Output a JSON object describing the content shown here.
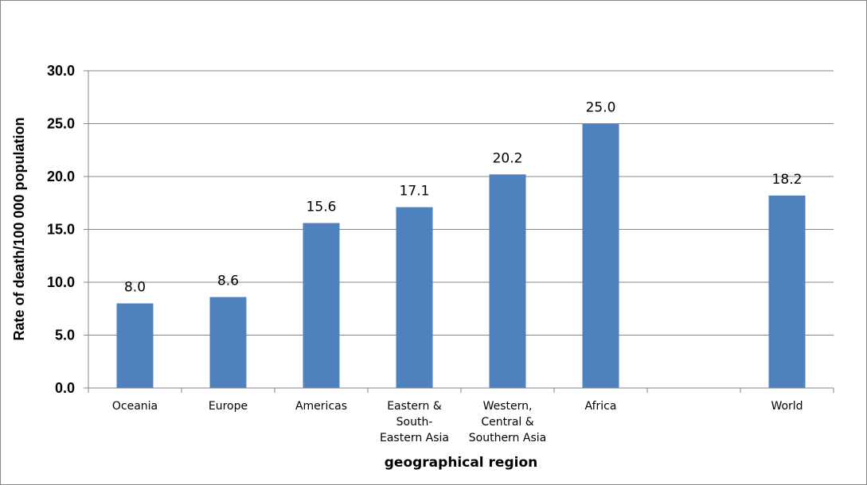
{
  "chart_data": {
    "type": "bar",
    "title": "",
    "categories": [
      "Oceania",
      "Europe",
      "Americas",
      "Eastern & South-Eastern Asia",
      "Western, Central & Southern Asia",
      "Africa",
      "",
      "World"
    ],
    "category_lines": [
      [
        "Oceania"
      ],
      [
        "Europe"
      ],
      [
        "Americas"
      ],
      [
        "Eastern &",
        "South-",
        "Eastern Asia"
      ],
      [
        "Western,",
        "Central &",
        "Southern Asia"
      ],
      [
        "Africa"
      ],
      [],
      [
        "World"
      ]
    ],
    "values": [
      8.0,
      8.6,
      15.6,
      17.1,
      20.2,
      25.0,
      null,
      18.2
    ],
    "data_labels": [
      "8.0",
      "8.6",
      "15.6",
      "17.1",
      "20.2",
      "25.0",
      "",
      "18.2"
    ],
    "xlabel": "geographical region",
    "ylabel": "Rate of death/100 000 population",
    "ylim": [
      0,
      30
    ],
    "yticks": [
      0,
      5,
      10,
      15,
      20,
      25,
      30
    ],
    "ytick_labels": [
      "0.0",
      "5.0",
      "10.0",
      "15.0",
      "20.0",
      "25.0",
      "30.0"
    ],
    "grid": true,
    "legend": "none",
    "bar_color": "#4f81bd"
  }
}
